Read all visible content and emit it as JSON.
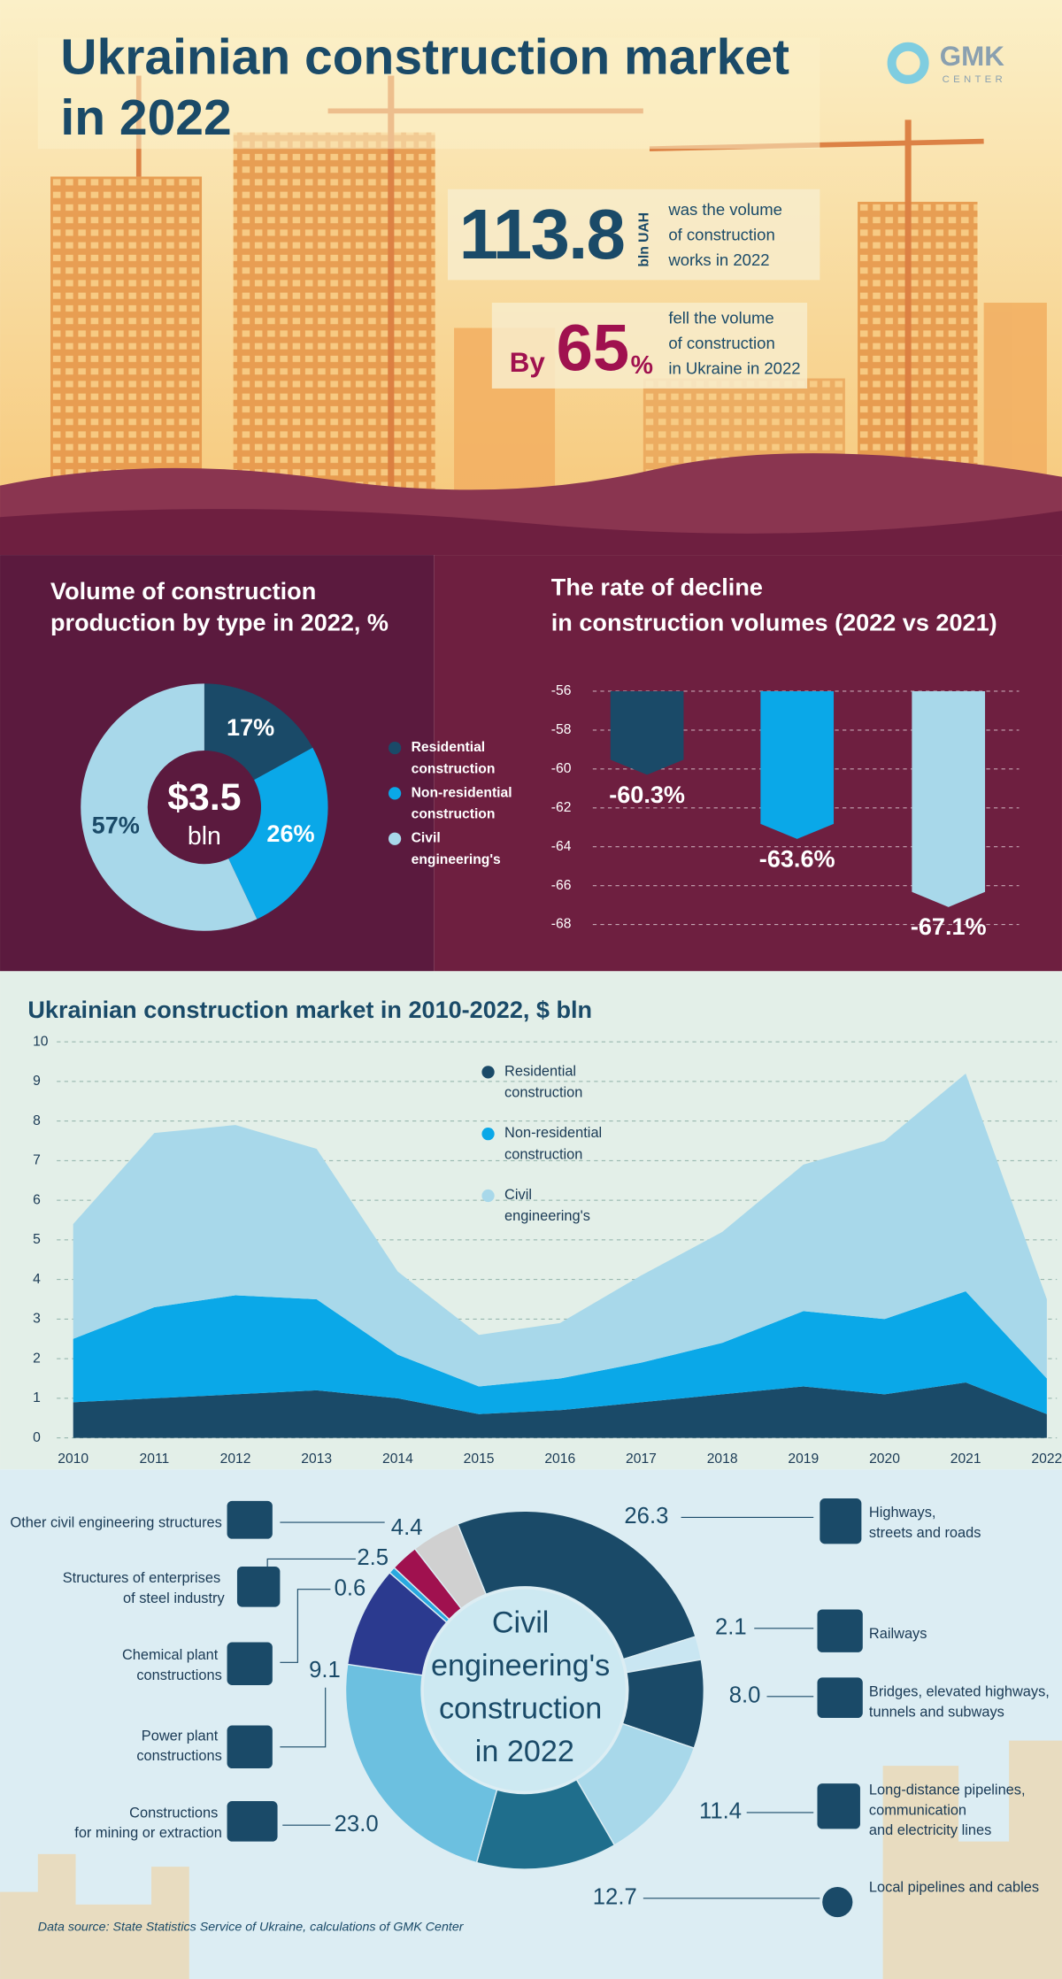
{
  "header": {
    "title": "Ukrainian construction market in 2022",
    "logo": "GMK",
    "logo_sub": "CENTER"
  },
  "stats": [
    {
      "value": "113.8",
      "unit": "bln UAH",
      "text": "was the volume of construction works in 2022"
    },
    {
      "prefix": "By",
      "value": "65",
      "unit": "%",
      "text": "fell the volume of construction in Ukraine in 2022"
    }
  ],
  "chart_data": [
    {
      "type": "donut",
      "title": "Volume of construction production by type in 2022, %",
      "categories": [
        "Residential construction",
        "Non-residential construction",
        "Civil engineering's"
      ],
      "values": [
        17,
        26,
        57
      ],
      "value_labels": [
        "17%",
        "26%",
        "57%"
      ],
      "colors": [
        "#1a4a68",
        "#0aa8e8",
        "#a8d8ea"
      ],
      "center_label": "$3.5",
      "center_sublabel": "bln",
      "legend": "right"
    },
    {
      "type": "bar",
      "title": "The rate of decline in construction volumes (2022 vs 2021)",
      "categories": [
        null,
        null,
        null
      ],
      "values": [
        -60.3,
        -63.6,
        -67.1
      ],
      "value_labels": [
        "-60.3%",
        "-63.6%",
        "-67.1%"
      ],
      "colors": [
        "#1a4a68",
        "#0aa8e8",
        "#a8d8ea"
      ],
      "ylim": [
        -68,
        -56
      ],
      "yticks": [
        -56,
        -58,
        -60,
        -62,
        -64,
        -66,
        -68
      ],
      "grid": true
    },
    {
      "type": "area",
      "stacked": true,
      "title": "Ukrainian construction market in 2010-2022, $ bln",
      "x": [
        2010,
        2011,
        2012,
        2013,
        2014,
        2015,
        2016,
        2017,
        2018,
        2019,
        2020,
        2021,
        2022
      ],
      "xlim": [
        2010,
        2022
      ],
      "xticks": [
        2010,
        2011,
        2012,
        2013,
        2014,
        2015,
        2016,
        2017,
        2018,
        2019,
        2020,
        2021,
        2022
      ],
      "ylim": [
        0,
        10
      ],
      "yticks": [
        0,
        1,
        2,
        3,
        4,
        5,
        6,
        7,
        8,
        9,
        10
      ],
      "grid": true,
      "legend": "top",
      "series": [
        {
          "name": "Residential construction",
          "color": "#1a4a68",
          "values": [
            0.9,
            1.0,
            1.1,
            1.2,
            1.0,
            0.6,
            0.7,
            0.9,
            1.1,
            1.3,
            1.1,
            1.4,
            0.6
          ]
        },
        {
          "name": "Non-residential construction",
          "color": "#0aa8e8",
          "values": [
            1.6,
            2.3,
            2.5,
            2.3,
            1.1,
            0.7,
            0.8,
            1.0,
            1.3,
            1.9,
            1.9,
            2.3,
            0.9
          ]
        },
        {
          "name": "Civil engineering's",
          "color": "#a8d8ea",
          "values": [
            2.9,
            4.4,
            4.3,
            3.8,
            2.1,
            1.3,
            1.4,
            2.2,
            2.8,
            3.7,
            4.5,
            5.5,
            2.0
          ]
        }
      ]
    },
    {
      "type": "donut",
      "title": "Civil engineering's construction in 2022",
      "categories": [
        "Highways, streets and roads",
        "Railways",
        "Bridges, elevated highways, tunnels and subways",
        "Long-distance pipelines, communication and electricity lines",
        "Local pipelines and cables",
        "Constructions for mining or extraction",
        "Power plant constructions",
        "Chemical plant constructions",
        "Structures of enterprises of steel industry",
        "Other civil engineering structures"
      ],
      "values": [
        26.3,
        2.1,
        8.0,
        11.4,
        12.7,
        23.0,
        9.1,
        0.6,
        2.5,
        4.4
      ],
      "value_labels": [
        "26.3",
        "2.1",
        "8.0",
        "11.4",
        "12.7",
        "23.0",
        "9.1",
        "0.6",
        "2.5",
        "4.4"
      ],
      "colors": [
        "#1a4a68",
        "#c9e6f2",
        "#1a4a68",
        "#a8d8ea",
        "#1f6e8c",
        "#6cc0e0",
        "#2b3a8f",
        "#29a9e0",
        "#a0114f",
        "#d0d0d0"
      ]
    }
  ],
  "source": "Data source: State Statistics Service of Ukraine, calculations of GMK Center"
}
